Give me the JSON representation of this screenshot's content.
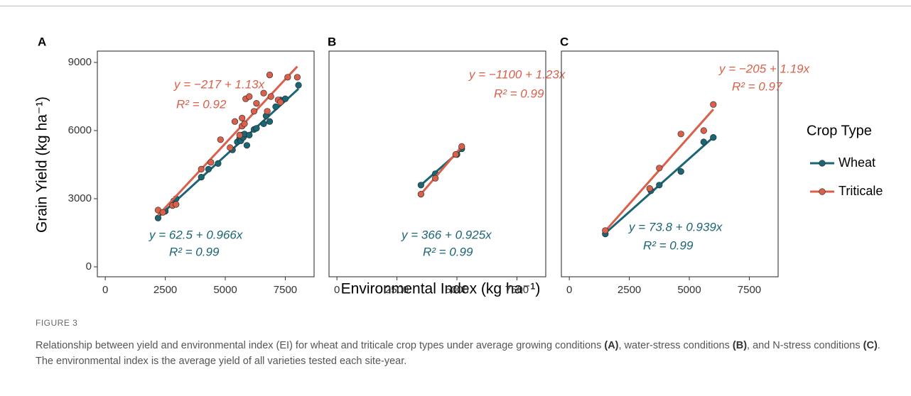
{
  "figure": {
    "ylabel": "Grain Yield (kg ha⁻¹)",
    "xlabel": "Environmental Index (kg ha⁻¹)",
    "legend": {
      "title": "Crop Type",
      "position": "right"
    }
  },
  "chart_data": [
    {
      "type": "scatter",
      "title": "A",
      "xlim": [
        -330,
        8700
      ],
      "ylim": [
        -437.5,
        9500
      ],
      "xticks": [
        0,
        2500,
        5000,
        7500
      ],
      "yticks": [
        0,
        3000,
        6000,
        9000
      ],
      "series": [
        {
          "name": "Wheat",
          "color": "#1b6575",
          "x": [
            2200,
            2500,
            2850,
            2950,
            4000,
            4300,
            4700,
            5300,
            5500,
            5600,
            5650,
            5700,
            5750,
            5800,
            5900,
            6000,
            6200,
            6300,
            6600,
            6700,
            6850,
            7100,
            7300,
            7500,
            8050
          ],
          "values": [
            2150,
            2450,
            2900,
            3000,
            3950,
            4300,
            4550,
            5150,
            5500,
            5650,
            5550,
            5800,
            5700,
            5850,
            5350,
            5800,
            6050,
            6100,
            6300,
            6650,
            6400,
            7050,
            7350,
            7400,
            8000
          ],
          "fit": {
            "intercept": 62.5,
            "slope": 0.966,
            "label": "y  =  62.5 + 0.966x",
            "r2": 0.99,
            "r2_label": "R²  =  0.99"
          }
        },
        {
          "name": "Triticale",
          "color": "#d9604a",
          "x": [
            2200,
            2400,
            2800,
            2950,
            4000,
            4400,
            4800,
            5200,
            5400,
            5600,
            5700,
            5700,
            5800,
            5850,
            6000,
            6200,
            6300,
            6600,
            6750,
            6850,
            6900,
            7200,
            7300,
            7600,
            8000
          ],
          "values": [
            2500,
            2400,
            2700,
            2750,
            4300,
            4600,
            5600,
            5250,
            6400,
            5800,
            6550,
            6200,
            6300,
            7400,
            7500,
            6850,
            7200,
            7650,
            6850,
            8450,
            7500,
            7350,
            7250,
            8350,
            8350
          ],
          "fit": {
            "intercept": -217,
            "slope": 1.13,
            "label": "y =  −217 + 1.13x",
            "r2": 0.92,
            "r2_label": "R²  =  0.92"
          }
        }
      ]
    },
    {
      "type": "scatter",
      "title": "B",
      "xlim": [
        -330,
        8700
      ],
      "ylim": [
        -437.5,
        9500
      ],
      "xticks": [
        0,
        2500,
        5000,
        7500
      ],
      "series": [
        {
          "name": "Wheat",
          "color": "#1b6575",
          "x": [
            3500,
            4100,
            5000,
            5200
          ],
          "values": [
            3600,
            4100,
            4950,
            5200
          ],
          "fit": {
            "intercept": 366,
            "slope": 0.925,
            "label": "y  =  366 + 0.925x",
            "r2": 0.99,
            "r2_label": "R²  =  0.99"
          }
        },
        {
          "name": "Triticale",
          "color": "#d9604a",
          "x": [
            3500,
            4100,
            4950,
            5200
          ],
          "values": [
            3200,
            3900,
            4950,
            5300
          ],
          "fit": {
            "intercept": -1100,
            "slope": 1.23,
            "label": "y = −1100 + 1.23x",
            "r2": 0.99,
            "r2_label": "R²  =  0.99"
          }
        }
      ]
    },
    {
      "type": "scatter",
      "title": "C",
      "xlim": [
        -330,
        8700
      ],
      "ylim": [
        -437.5,
        9500
      ],
      "xticks": [
        0,
        2500,
        5000,
        7500
      ],
      "series": [
        {
          "name": "Wheat",
          "color": "#1b6575",
          "x": [
            1500,
            3400,
            3750,
            4650,
            5600,
            6000
          ],
          "values": [
            1450,
            3350,
            3600,
            4200,
            5500,
            5700
          ],
          "fit": {
            "intercept": 73.8,
            "slope": 0.939,
            "label": "y  =  73.8 + 0.939x",
            "r2": 0.99,
            "r2_label": "R²  =  0.99"
          }
        },
        {
          "name": "Triticale",
          "color": "#d9604a",
          "x": [
            1500,
            3350,
            3750,
            4650,
            5600,
            6000
          ],
          "values": [
            1600,
            3450,
            4350,
            5850,
            6000,
            7150
          ],
          "fit": {
            "intercept": -205,
            "slope": 1.19,
            "label": "y  =  −205 + 1.19x",
            "r2": 0.97,
            "r2_label": "R²  =  0.97"
          }
        }
      ]
    }
  ],
  "caption": {
    "label": "FIGURE 3",
    "parts": [
      {
        "text": "Relationship between yield and environmental index (EI) for wheat and triticale crop types under average growing conditions ",
        "bold": false
      },
      {
        "text": "(A)",
        "bold": true
      },
      {
        "text": ", water-stress conditions ",
        "bold": false
      },
      {
        "text": "(B)",
        "bold": true
      },
      {
        "text": ", and N-stress conditions ",
        "bold": false
      },
      {
        "text": "(C)",
        "bold": true
      },
      {
        "text": ". The environmental index is the average yield of all varieties tested each site-year.",
        "bold": false
      }
    ]
  }
}
